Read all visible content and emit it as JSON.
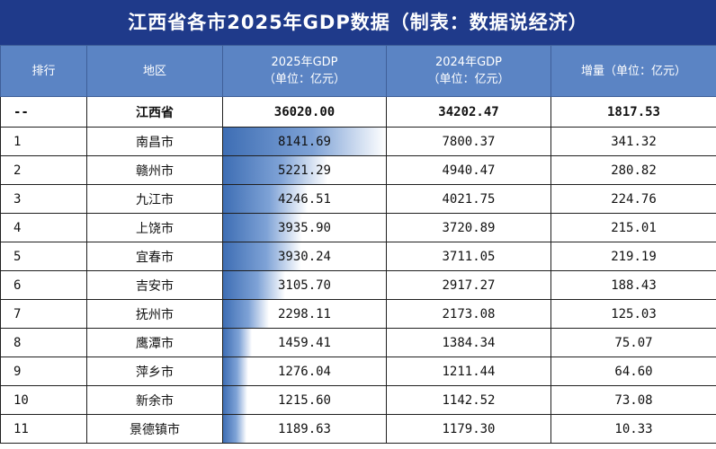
{
  "title": "江西省各市2025年GDP数据（制表：数据说经济）",
  "headers": {
    "rank": "排行",
    "region": "地区",
    "gdp2025_line1": "2025年GDP",
    "gdp2025_line2": "（单位：亿元）",
    "gdp2024_line1": "2024年GDP",
    "gdp2024_line2": "（单位：亿元）",
    "increase": "增量（单位：亿元）"
  },
  "total": {
    "rank": "--",
    "region": "江西省",
    "gdp2025": "36020.00",
    "gdp2024": "34202.47",
    "increase": "1817.53"
  },
  "rows": [
    {
      "rank": "1",
      "region": "南昌市",
      "gdp2025": "8141.69",
      "gdp2024": "7800.37",
      "increase": "341.32",
      "bar": 8141.69
    },
    {
      "rank": "2",
      "region": "赣州市",
      "gdp2025": "5221.29",
      "gdp2024": "4940.47",
      "increase": "280.82",
      "bar": 5221.29
    },
    {
      "rank": "3",
      "region": "九江市",
      "gdp2025": "4246.51",
      "gdp2024": "4021.75",
      "increase": "224.76",
      "bar": 4246.51
    },
    {
      "rank": "4",
      "region": "上饶市",
      "gdp2025": "3935.90",
      "gdp2024": "3720.89",
      "increase": "215.01",
      "bar": 3935.9
    },
    {
      "rank": "5",
      "region": "宜春市",
      "gdp2025": "3930.24",
      "gdp2024": "3711.05",
      "increase": "219.19",
      "bar": 3930.24
    },
    {
      "rank": "6",
      "region": "吉安市",
      "gdp2025": "3105.70",
      "gdp2024": "2917.27",
      "increase": "188.43",
      "bar": 3105.7
    },
    {
      "rank": "7",
      "region": "抚州市",
      "gdp2025": "2298.11",
      "gdp2024": "2173.08",
      "increase": "125.03",
      "bar": 2298.11
    },
    {
      "rank": "8",
      "region": "鹰潭市",
      "gdp2025": "1459.41",
      "gdp2024": "1384.34",
      "increase": "75.07",
      "bar": 1459.41
    },
    {
      "rank": "9",
      "region": "萍乡市",
      "gdp2025": "1276.04",
      "gdp2024": "1211.44",
      "increase": "64.60",
      "bar": 1276.04
    },
    {
      "rank": "10",
      "region": "新余市",
      "gdp2025": "1215.60",
      "gdp2024": "1142.52",
      "increase": "73.08",
      "bar": 1215.6
    },
    {
      "rank": "11",
      "region": "景德镇市",
      "gdp2025": "1189.63",
      "gdp2024": "1179.30",
      "increase": "10.33",
      "bar": 1189.63
    }
  ],
  "bar_max": 8141.69,
  "colors": {
    "title_bg": "#1f3a8a",
    "header_bg": "#5b84c4",
    "bar": "#3e6eb4"
  }
}
